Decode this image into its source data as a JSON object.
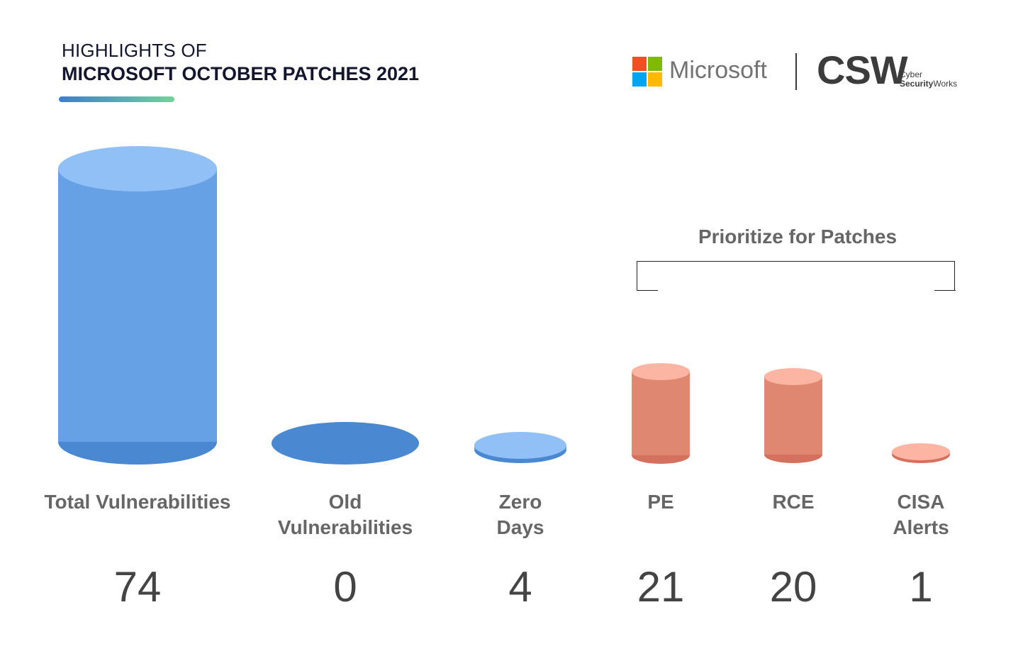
{
  "header": {
    "line1": "HIGHLIGHTS OF",
    "line2": "MICROSOFT OCTOBER PATCHES 2021"
  },
  "logos": {
    "microsoft": "Microsoft",
    "csw": "CSW",
    "csw_sub1": "Cyber",
    "csw_sub2_bold": "Security",
    "csw_sub2_rest": "Works",
    "ms_colors": [
      "#f25022",
      "#7fba00",
      "#00a4ef",
      "#ffb900"
    ]
  },
  "annotation": {
    "bracket_title": "Prioritize for Patches"
  },
  "chart_data": {
    "type": "bar",
    "categories": [
      "Total Vulnerabilities",
      "Old Vulnerabilities",
      "Zero Days",
      "PE",
      "RCE",
      "CISA Alerts"
    ],
    "category_lines": [
      [
        "Total Vulnerabilities"
      ],
      [
        "Old",
        "Vulnerabilities"
      ],
      [
        "Zero",
        "Days"
      ],
      [
        "PE"
      ],
      [
        "RCE"
      ],
      [
        "CISA",
        "Alerts"
      ]
    ],
    "values": [
      74,
      0,
      4,
      21,
      20,
      1
    ],
    "value_labels": [
      "74",
      "0",
      "4",
      "21",
      "20",
      "1"
    ],
    "groups": [
      "blue",
      "blue",
      "blue",
      "orange",
      "orange",
      "orange"
    ],
    "colors": {
      "blue_body": "#65a1e4",
      "blue_top": "#90c0f6",
      "blue_base": "#4a88d2",
      "orange_body": "#e08772",
      "orange_top": "#fcb5a2",
      "orange_base": "#d4715e"
    },
    "title": "",
    "xlabel": "",
    "ylabel": "",
    "ylim": [
      0,
      74
    ]
  }
}
